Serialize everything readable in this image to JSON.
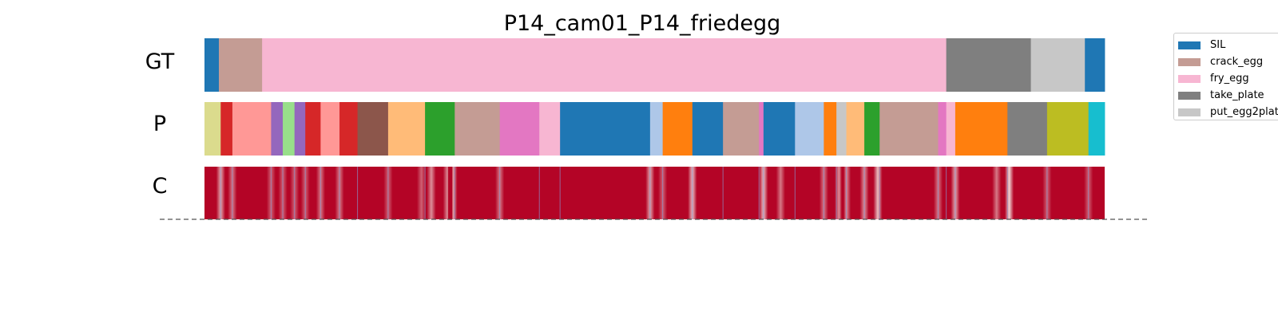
{
  "chart_data": {
    "type": "segmentation-timeline",
    "title": "P14_cam01_P14_friedegg",
    "row_labels": [
      "GT",
      "P",
      "C"
    ],
    "x_range": [
      0,
      1
    ],
    "legend": {
      "placement": "top-right",
      "entries": [
        {
          "label": "SIL",
          "color": "#1f77b4"
        },
        {
          "label": "crack_egg",
          "color": "#c49c94"
        },
        {
          "label": "fry_egg",
          "color": "#f7b6d2"
        },
        {
          "label": "take_plate",
          "color": "#7f7f7f"
        },
        {
          "label": "put_egg2plat",
          "color": "#c7c7c7"
        }
      ]
    },
    "gt_segments": [
      {
        "start": 0.0,
        "end": 0.016,
        "color": "#1f77b4"
      },
      {
        "start": 0.016,
        "end": 0.064,
        "color": "#c49c94"
      },
      {
        "start": 0.064,
        "end": 0.824,
        "color": "#f7b6d2"
      },
      {
        "start": 0.824,
        "end": 0.918,
        "color": "#7f7f7f"
      },
      {
        "start": 0.918,
        "end": 0.978,
        "color": "#c7c7c7"
      },
      {
        "start": 0.978,
        "end": 1.0,
        "color": "#1f77b4"
      }
    ],
    "pred_segments": [
      {
        "start": 0.0,
        "end": 0.018,
        "color": "#dbdb8d"
      },
      {
        "start": 0.018,
        "end": 0.031,
        "color": "#d62728"
      },
      {
        "start": 0.031,
        "end": 0.074,
        "color": "#ff9896"
      },
      {
        "start": 0.074,
        "end": 0.087,
        "color": "#9467bd"
      },
      {
        "start": 0.087,
        "end": 0.1,
        "color": "#98df8a"
      },
      {
        "start": 0.1,
        "end": 0.112,
        "color": "#9467bd"
      },
      {
        "start": 0.112,
        "end": 0.129,
        "color": "#d62728"
      },
      {
        "start": 0.129,
        "end": 0.15,
        "color": "#ff9896"
      },
      {
        "start": 0.15,
        "end": 0.17,
        "color": "#d62728"
      },
      {
        "start": 0.17,
        "end": 0.204,
        "color": "#8c564b"
      },
      {
        "start": 0.204,
        "end": 0.245,
        "color": "#ffbb78"
      },
      {
        "start": 0.245,
        "end": 0.278,
        "color": "#2ca02c"
      },
      {
        "start": 0.278,
        "end": 0.328,
        "color": "#c49c94"
      },
      {
        "start": 0.328,
        "end": 0.372,
        "color": "#e377c2"
      },
      {
        "start": 0.372,
        "end": 0.395,
        "color": "#f7b6d2"
      },
      {
        "start": 0.395,
        "end": 0.495,
        "color": "#1f77b4"
      },
      {
        "start": 0.495,
        "end": 0.509,
        "color": "#aec7e8"
      },
      {
        "start": 0.509,
        "end": 0.542,
        "color": "#ff7f0e"
      },
      {
        "start": 0.542,
        "end": 0.576,
        "color": "#1f77b4"
      },
      {
        "start": 0.576,
        "end": 0.616,
        "color": "#c49c94"
      },
      {
        "start": 0.616,
        "end": 0.621,
        "color": "#e377c2"
      },
      {
        "start": 0.621,
        "end": 0.656,
        "color": "#1f77b4"
      },
      {
        "start": 0.656,
        "end": 0.688,
        "color": "#aec7e8"
      },
      {
        "start": 0.688,
        "end": 0.702,
        "color": "#ff7f0e"
      },
      {
        "start": 0.702,
        "end": 0.713,
        "color": "#c7c7c7"
      },
      {
        "start": 0.713,
        "end": 0.733,
        "color": "#ffbb78"
      },
      {
        "start": 0.733,
        "end": 0.75,
        "color": "#2ca02c"
      },
      {
        "start": 0.75,
        "end": 0.815,
        "color": "#c49c94"
      },
      {
        "start": 0.815,
        "end": 0.824,
        "color": "#e377c2"
      },
      {
        "start": 0.824,
        "end": 0.834,
        "color": "#f7b6d2"
      },
      {
        "start": 0.834,
        "end": 0.892,
        "color": "#ff7f0e"
      },
      {
        "start": 0.892,
        "end": 0.936,
        "color": "#7f7f7f"
      },
      {
        "start": 0.936,
        "end": 0.982,
        "color": "#bcbd22"
      },
      {
        "start": 0.982,
        "end": 1.0,
        "color": "#17becf"
      }
    ],
    "confidence": {
      "base_color": "#b40426",
      "dips": [
        {
          "x": 0.018,
          "v": 0.3
        },
        {
          "x": 0.031,
          "v": 0.5
        },
        {
          "x": 0.074,
          "v": 0.6
        },
        {
          "x": 0.087,
          "v": 0.6
        },
        {
          "x": 0.1,
          "v": 0.6
        },
        {
          "x": 0.112,
          "v": 0.6
        },
        {
          "x": 0.129,
          "v": 0.5
        },
        {
          "x": 0.15,
          "v": 0.5
        },
        {
          "x": 0.204,
          "v": 0.6
        },
        {
          "x": 0.241,
          "v": 0.6
        },
        {
          "x": 0.252,
          "v": 0.4
        },
        {
          "x": 0.27,
          "v": 0.4
        },
        {
          "x": 0.276,
          "v": 0.3
        },
        {
          "x": 0.328,
          "v": 0.5
        },
        {
          "x": 0.495,
          "v": 0.3
        },
        {
          "x": 0.509,
          "v": 0.6
        },
        {
          "x": 0.542,
          "v": 0.2
        },
        {
          "x": 0.621,
          "v": 0.2
        },
        {
          "x": 0.64,
          "v": 0.5
        },
        {
          "x": 0.688,
          "v": 0.5
        },
        {
          "x": 0.705,
          "v": 0.4
        },
        {
          "x": 0.713,
          "v": 0.4
        },
        {
          "x": 0.733,
          "v": 0.4
        },
        {
          "x": 0.748,
          "v": 0.2
        },
        {
          "x": 0.815,
          "v": 0.5
        },
        {
          "x": 0.834,
          "v": 0.3
        },
        {
          "x": 0.88,
          "v": 0.5
        },
        {
          "x": 0.894,
          "v": 0.1
        },
        {
          "x": 0.936,
          "v": 0.6
        },
        {
          "x": 0.982,
          "v": 0.6
        }
      ]
    }
  }
}
